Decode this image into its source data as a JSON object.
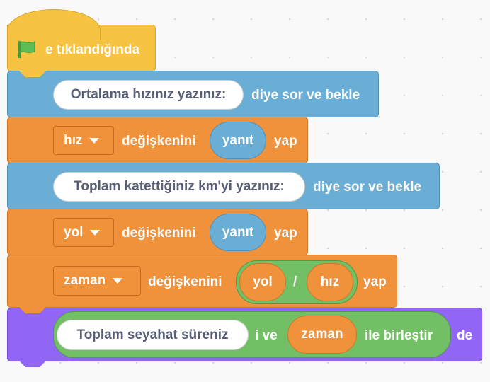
{
  "script": {
    "hat": {
      "icon": "green-flag-icon",
      "label": "e tıklandığında"
    },
    "ask1": {
      "input": "Ortalama hızınız yazınız:",
      "label": "diye sor ve bekle"
    },
    "set1": {
      "variable": "hız",
      "label": "değişkenini",
      "value": "yanıt",
      "suffix": "yap"
    },
    "ask2": {
      "input": "Toplam katettiğiniz km'yi yazınız:",
      "label": "diye sor ve bekle"
    },
    "set2": {
      "variable": "yol",
      "label": "değişkenini",
      "value": "yanıt",
      "suffix": "yap"
    },
    "set3": {
      "variable": "zaman",
      "label": "değişkenini",
      "left": "yol",
      "op": "/",
      "right": "hız",
      "suffix": "yap"
    },
    "say": {
      "text": "Toplam seyahat süreniz",
      "join_mid": "i ve",
      "join_var": "zaman",
      "join_end": "ile birleştir",
      "label": "de"
    }
  },
  "colors": {
    "events": "#F7C342",
    "sensing": "#6AAED6",
    "variables": "#F0923B",
    "operators": "#73BF65",
    "looks": "#9266F5"
  }
}
